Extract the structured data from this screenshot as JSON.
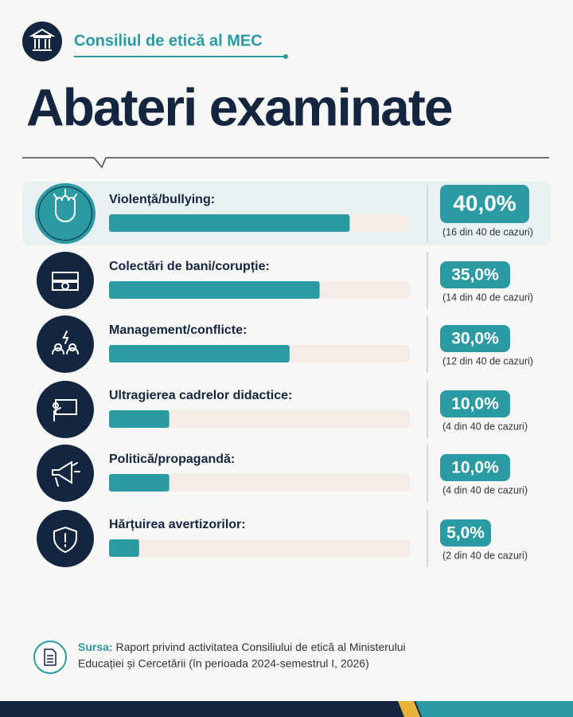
{
  "header": {
    "organization": "Consiliul de etică al MEC"
  },
  "chart_data": {
    "type": "bar",
    "orientation": "horizontal",
    "title": "Abateri examinate",
    "categories": [
      "Violență/bullying:",
      "Colectări de bani/corupție:",
      "Management/conflicte:",
      "Ultragierea cadrelor didactice:",
      "Politică/propagandă:",
      "Hărțuirea avertizorilor:"
    ],
    "values": [
      40,
      35,
      30,
      10,
      10,
      5
    ],
    "value_labels": [
      "40,0%",
      "35,0%",
      "30,0%",
      "10,0%",
      "10,0%",
      "5,0%"
    ],
    "notes": [
      "(16 din 40 de cazuri)",
      "(14 din 40 de cazuri)",
      "(12 din 40 de cazuri)",
      "(4 din 40 de cazuri)",
      "(4 din 40 de cazuri)",
      "(2 din 40 de cazuri)"
    ],
    "xlim": [
      0,
      50
    ],
    "color": "#2a9aa3"
  },
  "source": {
    "label": "Sursa:",
    "text": "Raport privind activitatea Consiliului de etică al Ministerului Educației și Cercetării (în perioada 2024-semestrul I, 2026)"
  }
}
